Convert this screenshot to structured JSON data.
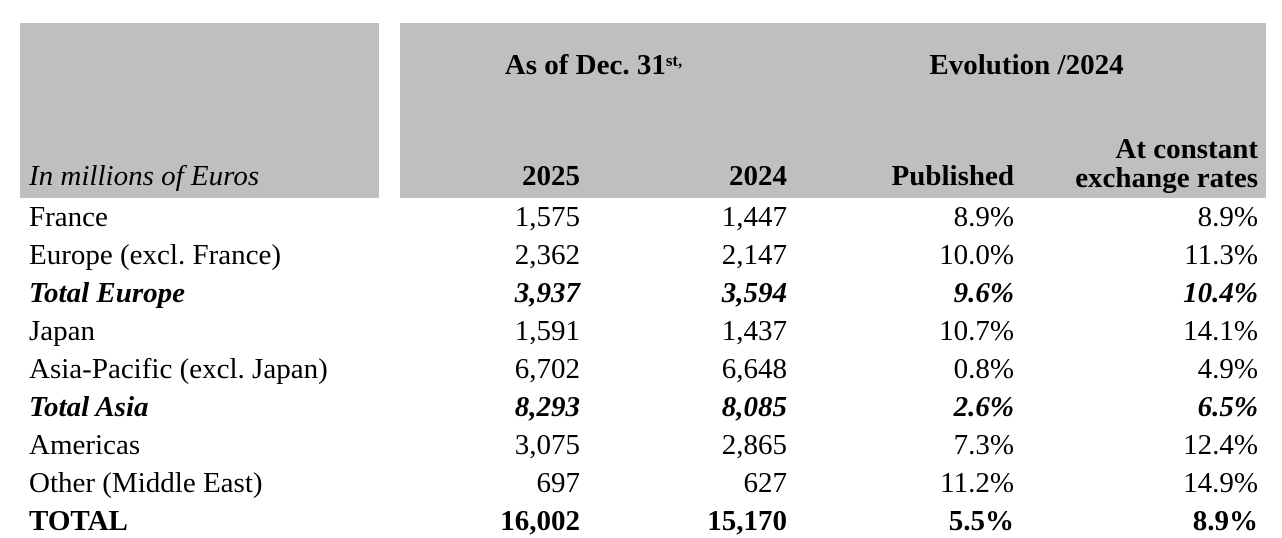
{
  "colors": {
    "header_background": "#bfbfbf",
    "text": "#000000",
    "page_background": "#ffffff"
  },
  "table": {
    "header": {
      "as_of_prefix": "As of Dec. 31",
      "as_of_superscript": "st,",
      "evolution": "Evolution /2024",
      "unit_label": "In millions of Euros",
      "col_2025": "2025",
      "col_2024": "2024",
      "col_published": "Published",
      "col_constant_line1": "At constant",
      "col_constant_line2": "exchange rates"
    },
    "rows": [
      {
        "label": "France",
        "v2025": "1,575",
        "v2024": "1,447",
        "published": "8.9%",
        "constant": "8.9%",
        "style": "normal"
      },
      {
        "label": "Europe (excl. France)",
        "v2025": "2,362",
        "v2024": "2,147",
        "published": "10.0%",
        "constant": "11.3%",
        "style": "normal"
      },
      {
        "label": "Total Europe",
        "v2025": "3,937",
        "v2024": "3,594",
        "published": "9.6%",
        "constant": "10.4%",
        "style": "subtotal"
      },
      {
        "label": "Japan",
        "v2025": "1,591",
        "v2024": "1,437",
        "published": "10.7%",
        "constant": "14.1%",
        "style": "normal"
      },
      {
        "label": "Asia-Pacific (excl. Japan)",
        "v2025": "6,702",
        "v2024": "6,648",
        "published": "0.8%",
        "constant": "4.9%",
        "style": "normal"
      },
      {
        "label": "Total Asia",
        "v2025": "8,293",
        "v2024": "8,085",
        "published": "2.6%",
        "constant": "6.5%",
        "style": "subtotal"
      },
      {
        "label": "Americas",
        "v2025": "3,075",
        "v2024": "2,865",
        "published": "7.3%",
        "constant": "12.4%",
        "style": "normal"
      },
      {
        "label": "Other (Middle East)",
        "v2025": "697",
        "v2024": "627",
        "published": "11.2%",
        "constant": "14.9%",
        "style": "normal"
      },
      {
        "label": "TOTAL",
        "v2025": "16,002",
        "v2024": "15,170",
        "published": "5.5%",
        "constant": "8.9%",
        "style": "total"
      }
    ]
  }
}
